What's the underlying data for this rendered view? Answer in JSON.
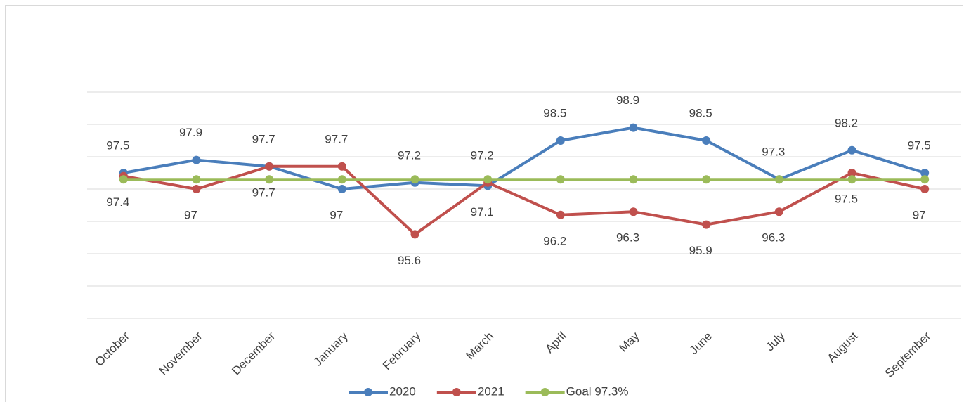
{
  "chart_data": {
    "type": "line",
    "categories": [
      "October",
      "November",
      "December",
      "January",
      "February",
      "March",
      "April",
      "May",
      "June",
      "July",
      "August",
      "September"
    ],
    "series": [
      {
        "name": "2020",
        "color": "#4a7ebb",
        "values": [
          97.5,
          97.9,
          97.7,
          97,
          97.2,
          97.1,
          98.5,
          98.9,
          98.5,
          97.3,
          98.2,
          97.5
        ]
      },
      {
        "name": "2021",
        "color": "#c0504d",
        "values": [
          97.4,
          97,
          97.7,
          97.7,
          95.6,
          97.2,
          96.2,
          96.3,
          95.9,
          96.3,
          97.5,
          97
        ]
      },
      {
        "name": "Goal 97.3%",
        "color": "#9bbb59",
        "values": [
          97.3,
          97.3,
          97.3,
          97.3,
          97.3,
          97.3,
          97.3,
          97.3,
          97.3,
          97.3,
          97.3,
          97.3
        ]
      }
    ],
    "ylim": [
      93,
      100
    ],
    "yticks": [
      93,
      94,
      95,
      96,
      97,
      98,
      99,
      100
    ],
    "grid": true,
    "legend": "bottom"
  }
}
